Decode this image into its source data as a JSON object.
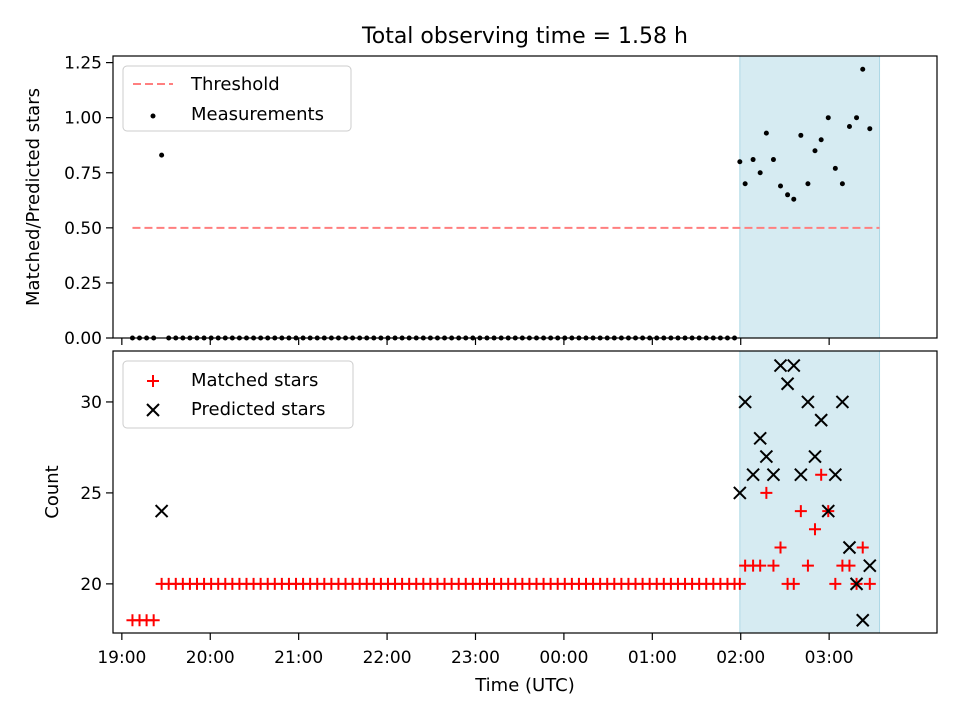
{
  "chart_data": {
    "type": "scatter",
    "title": "Total observing time = 1.58 h",
    "xlabel": "Time (UTC)",
    "xlim": [
      -0.1,
      9.22
    ],
    "x_ticks": [
      0,
      1,
      2,
      3,
      4,
      5,
      6,
      7,
      8
    ],
    "x_tick_labels": [
      "19:00",
      "20:00",
      "21:00",
      "22:00",
      "23:00",
      "00:00",
      "01:00",
      "02:00",
      "03:00"
    ],
    "highlight_span": {
      "x_start": 6.99,
      "x_end": 8.57
    },
    "colors": {
      "threshold": "#ff7f7f",
      "measurements": "#000000",
      "matched": "#ff0000",
      "predicted": "#000000",
      "span_fill": "#add8e6"
    },
    "panels": [
      {
        "ylabel": "Matched/Predicted stars",
        "ylim": [
          0,
          1.28
        ],
        "y_ticks": [
          0,
          0.25,
          0.5,
          0.75,
          1.0,
          1.25
        ],
        "y_tick_labels": [
          "0.00",
          "0.25",
          "0.50",
          "0.75",
          "1.00",
          "1.25"
        ],
        "legend": {
          "placement": "upper left",
          "threshold_label": "Threshold",
          "measurements_label": "Measurements"
        },
        "threshold": {
          "y": 0.5,
          "x_start": 0.12,
          "x_end": 8.57
        },
        "measurements": [
          [
            0.12,
            0
          ],
          [
            0.2,
            0
          ],
          [
            0.28,
            0
          ],
          [
            0.36,
            0
          ],
          [
            0.45,
            0.83
          ],
          [
            0.53,
            0
          ],
          [
            0.61,
            0
          ],
          [
            0.69,
            0
          ],
          [
            0.77,
            0
          ],
          [
            0.85,
            0
          ],
          [
            0.93,
            0
          ],
          [
            1.01,
            0
          ],
          [
            1.09,
            0
          ],
          [
            1.17,
            0
          ],
          [
            1.25,
            0
          ],
          [
            1.33,
            0
          ],
          [
            1.41,
            0
          ],
          [
            1.49,
            0
          ],
          [
            1.57,
            0
          ],
          [
            1.65,
            0
          ],
          [
            1.73,
            0
          ],
          [
            1.81,
            0
          ],
          [
            1.89,
            0
          ],
          [
            1.97,
            0
          ],
          [
            2.05,
            0
          ],
          [
            2.13,
            0
          ],
          [
            2.21,
            0
          ],
          [
            2.29,
            0
          ],
          [
            2.37,
            0
          ],
          [
            2.45,
            0
          ],
          [
            2.53,
            0
          ],
          [
            2.61,
            0
          ],
          [
            2.69,
            0
          ],
          [
            2.77,
            0
          ],
          [
            2.85,
            0
          ],
          [
            2.93,
            0
          ],
          [
            3.01,
            0
          ],
          [
            3.09,
            0
          ],
          [
            3.17,
            0
          ],
          [
            3.25,
            0
          ],
          [
            3.33,
            0
          ],
          [
            3.41,
            0
          ],
          [
            3.49,
            0
          ],
          [
            3.57,
            0
          ],
          [
            3.65,
            0
          ],
          [
            3.73,
            0
          ],
          [
            3.81,
            0
          ],
          [
            3.89,
            0
          ],
          [
            3.97,
            0
          ],
          [
            4.05,
            0
          ],
          [
            4.13,
            0
          ],
          [
            4.21,
            0
          ],
          [
            4.29,
            0
          ],
          [
            4.37,
            0
          ],
          [
            4.45,
            0
          ],
          [
            4.53,
            0
          ],
          [
            4.61,
            0
          ],
          [
            4.69,
            0
          ],
          [
            4.77,
            0
          ],
          [
            4.85,
            0
          ],
          [
            4.93,
            0
          ],
          [
            5.01,
            0
          ],
          [
            5.09,
            0
          ],
          [
            5.17,
            0
          ],
          [
            5.25,
            0
          ],
          [
            5.33,
            0
          ],
          [
            5.41,
            0
          ],
          [
            5.49,
            0
          ],
          [
            5.57,
            0
          ],
          [
            5.65,
            0
          ],
          [
            5.73,
            0
          ],
          [
            5.81,
            0
          ],
          [
            5.89,
            0
          ],
          [
            5.97,
            0
          ],
          [
            6.05,
            0
          ],
          [
            6.13,
            0
          ],
          [
            6.21,
            0
          ],
          [
            6.29,
            0
          ],
          [
            6.37,
            0
          ],
          [
            6.45,
            0
          ],
          [
            6.53,
            0
          ],
          [
            6.61,
            0
          ],
          [
            6.69,
            0
          ],
          [
            6.77,
            0
          ],
          [
            6.85,
            0
          ],
          [
            6.93,
            0
          ],
          [
            6.99,
            0.8
          ],
          [
            7.05,
            0.7
          ],
          [
            7.14,
            0.81
          ],
          [
            7.22,
            0.75
          ],
          [
            7.29,
            0.93
          ],
          [
            7.37,
            0.81
          ],
          [
            7.45,
            0.69
          ],
          [
            7.53,
            0.65
          ],
          [
            7.6,
            0.63
          ],
          [
            7.68,
            0.92
          ],
          [
            7.76,
            0.7
          ],
          [
            7.84,
            0.85
          ],
          [
            7.91,
            0.9
          ],
          [
            7.99,
            1.0
          ],
          [
            8.07,
            0.77
          ],
          [
            8.15,
            0.7
          ],
          [
            8.23,
            0.96
          ],
          [
            8.31,
            1.0
          ],
          [
            8.38,
            1.22
          ],
          [
            8.46,
            0.95
          ]
        ]
      },
      {
        "ylabel": "Count",
        "ylim": [
          17.3,
          32.8
        ],
        "y_ticks": [
          20,
          25,
          30
        ],
        "y_tick_labels": [
          "20",
          "25",
          "30"
        ],
        "legend": {
          "placement": "upper left",
          "matched_label": "Matched stars",
          "predicted_label": "Predicted stars"
        },
        "matched": [
          [
            0.12,
            18
          ],
          [
            0.2,
            18
          ],
          [
            0.28,
            18
          ],
          [
            0.36,
            18
          ],
          [
            0.45,
            20
          ],
          [
            0.53,
            20
          ],
          [
            0.61,
            20
          ],
          [
            0.69,
            20
          ],
          [
            0.77,
            20
          ],
          [
            0.85,
            20
          ],
          [
            0.93,
            20
          ],
          [
            1.01,
            20
          ],
          [
            1.09,
            20
          ],
          [
            1.17,
            20
          ],
          [
            1.25,
            20
          ],
          [
            1.33,
            20
          ],
          [
            1.41,
            20
          ],
          [
            1.49,
            20
          ],
          [
            1.57,
            20
          ],
          [
            1.65,
            20
          ],
          [
            1.73,
            20
          ],
          [
            1.81,
            20
          ],
          [
            1.89,
            20
          ],
          [
            1.97,
            20
          ],
          [
            2.05,
            20
          ],
          [
            2.13,
            20
          ],
          [
            2.21,
            20
          ],
          [
            2.29,
            20
          ],
          [
            2.37,
            20
          ],
          [
            2.45,
            20
          ],
          [
            2.53,
            20
          ],
          [
            2.61,
            20
          ],
          [
            2.69,
            20
          ],
          [
            2.77,
            20
          ],
          [
            2.85,
            20
          ],
          [
            2.93,
            20
          ],
          [
            3.01,
            20
          ],
          [
            3.09,
            20
          ],
          [
            3.17,
            20
          ],
          [
            3.25,
            20
          ],
          [
            3.33,
            20
          ],
          [
            3.41,
            20
          ],
          [
            3.49,
            20
          ],
          [
            3.57,
            20
          ],
          [
            3.65,
            20
          ],
          [
            3.73,
            20
          ],
          [
            3.81,
            20
          ],
          [
            3.89,
            20
          ],
          [
            3.97,
            20
          ],
          [
            4.05,
            20
          ],
          [
            4.13,
            20
          ],
          [
            4.21,
            20
          ],
          [
            4.29,
            20
          ],
          [
            4.37,
            20
          ],
          [
            4.45,
            20
          ],
          [
            4.53,
            20
          ],
          [
            4.61,
            20
          ],
          [
            4.69,
            20
          ],
          [
            4.77,
            20
          ],
          [
            4.85,
            20
          ],
          [
            4.93,
            20
          ],
          [
            5.01,
            20
          ],
          [
            5.09,
            20
          ],
          [
            5.17,
            20
          ],
          [
            5.25,
            20
          ],
          [
            5.33,
            20
          ],
          [
            5.41,
            20
          ],
          [
            5.49,
            20
          ],
          [
            5.57,
            20
          ],
          [
            5.65,
            20
          ],
          [
            5.73,
            20
          ],
          [
            5.81,
            20
          ],
          [
            5.89,
            20
          ],
          [
            5.97,
            20
          ],
          [
            6.05,
            20
          ],
          [
            6.13,
            20
          ],
          [
            6.21,
            20
          ],
          [
            6.29,
            20
          ],
          [
            6.37,
            20
          ],
          [
            6.45,
            20
          ],
          [
            6.53,
            20
          ],
          [
            6.61,
            20
          ],
          [
            6.69,
            20
          ],
          [
            6.77,
            20
          ],
          [
            6.85,
            20
          ],
          [
            6.93,
            20
          ],
          [
            6.99,
            20
          ],
          [
            7.05,
            21
          ],
          [
            7.14,
            21
          ],
          [
            7.22,
            21
          ],
          [
            7.29,
            25
          ],
          [
            7.37,
            21
          ],
          [
            7.45,
            22
          ],
          [
            7.53,
            20
          ],
          [
            7.6,
            20
          ],
          [
            7.68,
            24
          ],
          [
            7.76,
            21
          ],
          [
            7.84,
            23
          ],
          [
            7.91,
            26
          ],
          [
            7.99,
            24
          ],
          [
            8.07,
            20
          ],
          [
            8.15,
            21
          ],
          [
            8.23,
            21
          ],
          [
            8.31,
            20
          ],
          [
            8.38,
            22
          ],
          [
            8.46,
            20
          ]
        ],
        "predicted": [
          [
            0.45,
            24
          ],
          [
            6.99,
            25
          ],
          [
            7.05,
            30
          ],
          [
            7.14,
            26
          ],
          [
            7.22,
            28
          ],
          [
            7.29,
            27
          ],
          [
            7.37,
            26
          ],
          [
            7.45,
            32
          ],
          [
            7.53,
            31
          ],
          [
            7.6,
            32
          ],
          [
            7.68,
            26
          ],
          [
            7.76,
            30
          ],
          [
            7.84,
            27
          ],
          [
            7.91,
            29
          ],
          [
            7.99,
            24
          ],
          [
            8.07,
            26
          ],
          [
            8.15,
            30
          ],
          [
            8.23,
            22
          ],
          [
            8.31,
            20
          ],
          [
            8.38,
            18
          ],
          [
            8.46,
            21
          ]
        ]
      }
    ]
  }
}
